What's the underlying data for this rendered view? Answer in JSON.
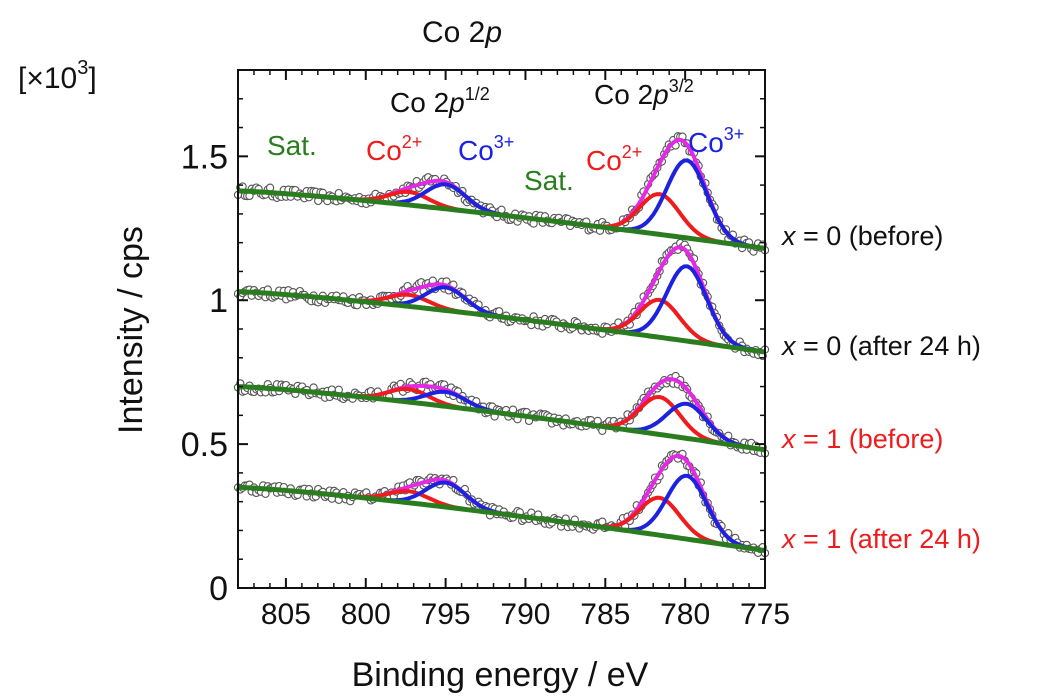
{
  "chart_data": {
    "type": "line",
    "title": "Co 2p",
    "title_parts": {
      "base": "Co 2",
      "italic": "p"
    },
    "xlabel": "Binding energy / eV",
    "ylabel": "Intensity / cps",
    "y_multiplier": "[×10³]",
    "y_multiplier_parts": {
      "base": "[×10",
      "sup": "3",
      "end": "]"
    },
    "xlim": [
      808,
      775
    ],
    "ylim": [
      0,
      1.8
    ],
    "x_reversed": true,
    "x_ticks": [
      805,
      800,
      795,
      790,
      785,
      780,
      775
    ],
    "x_tick_labels": [
      "805",
      "800",
      "795",
      "790",
      "785",
      "780",
      "775"
    ],
    "y_ticks": [
      0,
      0.5,
      1,
      1.5
    ],
    "y_tick_labels": [
      "0",
      "0.5",
      "1",
      "1.5"
    ],
    "grid": false,
    "annotations": {
      "p12": {
        "base": "Co 2",
        "italic": "p",
        "sup": "1/2"
      },
      "p32": {
        "base": "Co 2",
        "italic": "p",
        "sup": "3/2"
      },
      "sat_left": "Sat.",
      "sat_mid": "Sat.",
      "co2_left": {
        "base": "Co",
        "sup": "2+"
      },
      "co3_left": {
        "base": "Co",
        "sup": "3+"
      },
      "co2_right": {
        "base": "Co",
        "sup": "2+"
      },
      "co3_right": {
        "base": "Co",
        "sup": "3+"
      }
    },
    "colors": {
      "data": "#ffffff",
      "data_edge": "#555555",
      "background": "#2a7d1f",
      "co2": "#ee1c1c",
      "co3": "#1c22dd",
      "envelope": "#e528e5",
      "label_black": "#111111",
      "label_red": "#ee1c1c",
      "sat": "#2a7d1f"
    },
    "series": [
      {
        "name": "x = 0 (before)",
        "label_parts": {
          "var": "x",
          "rest": " = 0 (before)"
        },
        "label_color": "#111111",
        "bg_start": 1.38,
        "bg_end": 1.18,
        "co2_peaks": [
          {
            "center": 797.3,
            "amp": 0.045
          },
          {
            "center": 781.6,
            "amp": 0.14
          }
        ],
        "co3_peaks": [
          {
            "center": 795.0,
            "amp": 0.085
          },
          {
            "center": 779.9,
            "amp": 0.27
          }
        ]
      },
      {
        "name": "x = 0 (after 24 h)",
        "label_parts": {
          "var": "x",
          "rest": " = 0 (after 24 h)"
        },
        "label_color": "#111111",
        "bg_start": 1.03,
        "bg_end": 0.82,
        "co2_peaks": [
          {
            "center": 797.3,
            "amp": 0.04
          },
          {
            "center": 781.6,
            "amp": 0.13
          }
        ],
        "co3_peaks": [
          {
            "center": 795.0,
            "amp": 0.08
          },
          {
            "center": 779.9,
            "amp": 0.26
          }
        ]
      },
      {
        "name": "x = 1 (before)",
        "label_parts": {
          "var": "x",
          "rest": " = 1 (before)"
        },
        "label_color": "#ee1c1c",
        "bg_start": 0.7,
        "bg_end": 0.48,
        "co2_peaks": [
          {
            "center": 797.3,
            "amp": 0.045
          },
          {
            "center": 781.6,
            "amp": 0.13
          }
        ],
        "co3_peaks": [
          {
            "center": 795.0,
            "amp": 0.05
          },
          {
            "center": 779.9,
            "amp": 0.12
          }
        ]
      },
      {
        "name": "x = 1 (after 24 h)",
        "label_parts": {
          "var": "x",
          "rest": " = 1 (after 24 h)"
        },
        "label_color": "#ee1c1c",
        "bg_start": 0.35,
        "bg_end": 0.13,
        "co2_peaks": [
          {
            "center": 797.3,
            "amp": 0.04
          },
          {
            "center": 781.6,
            "amp": 0.13
          }
        ],
        "co3_peaks": [
          {
            "center": 795.0,
            "amp": 0.085
          },
          {
            "center": 779.9,
            "amp": 0.22
          }
        ]
      }
    ]
  }
}
